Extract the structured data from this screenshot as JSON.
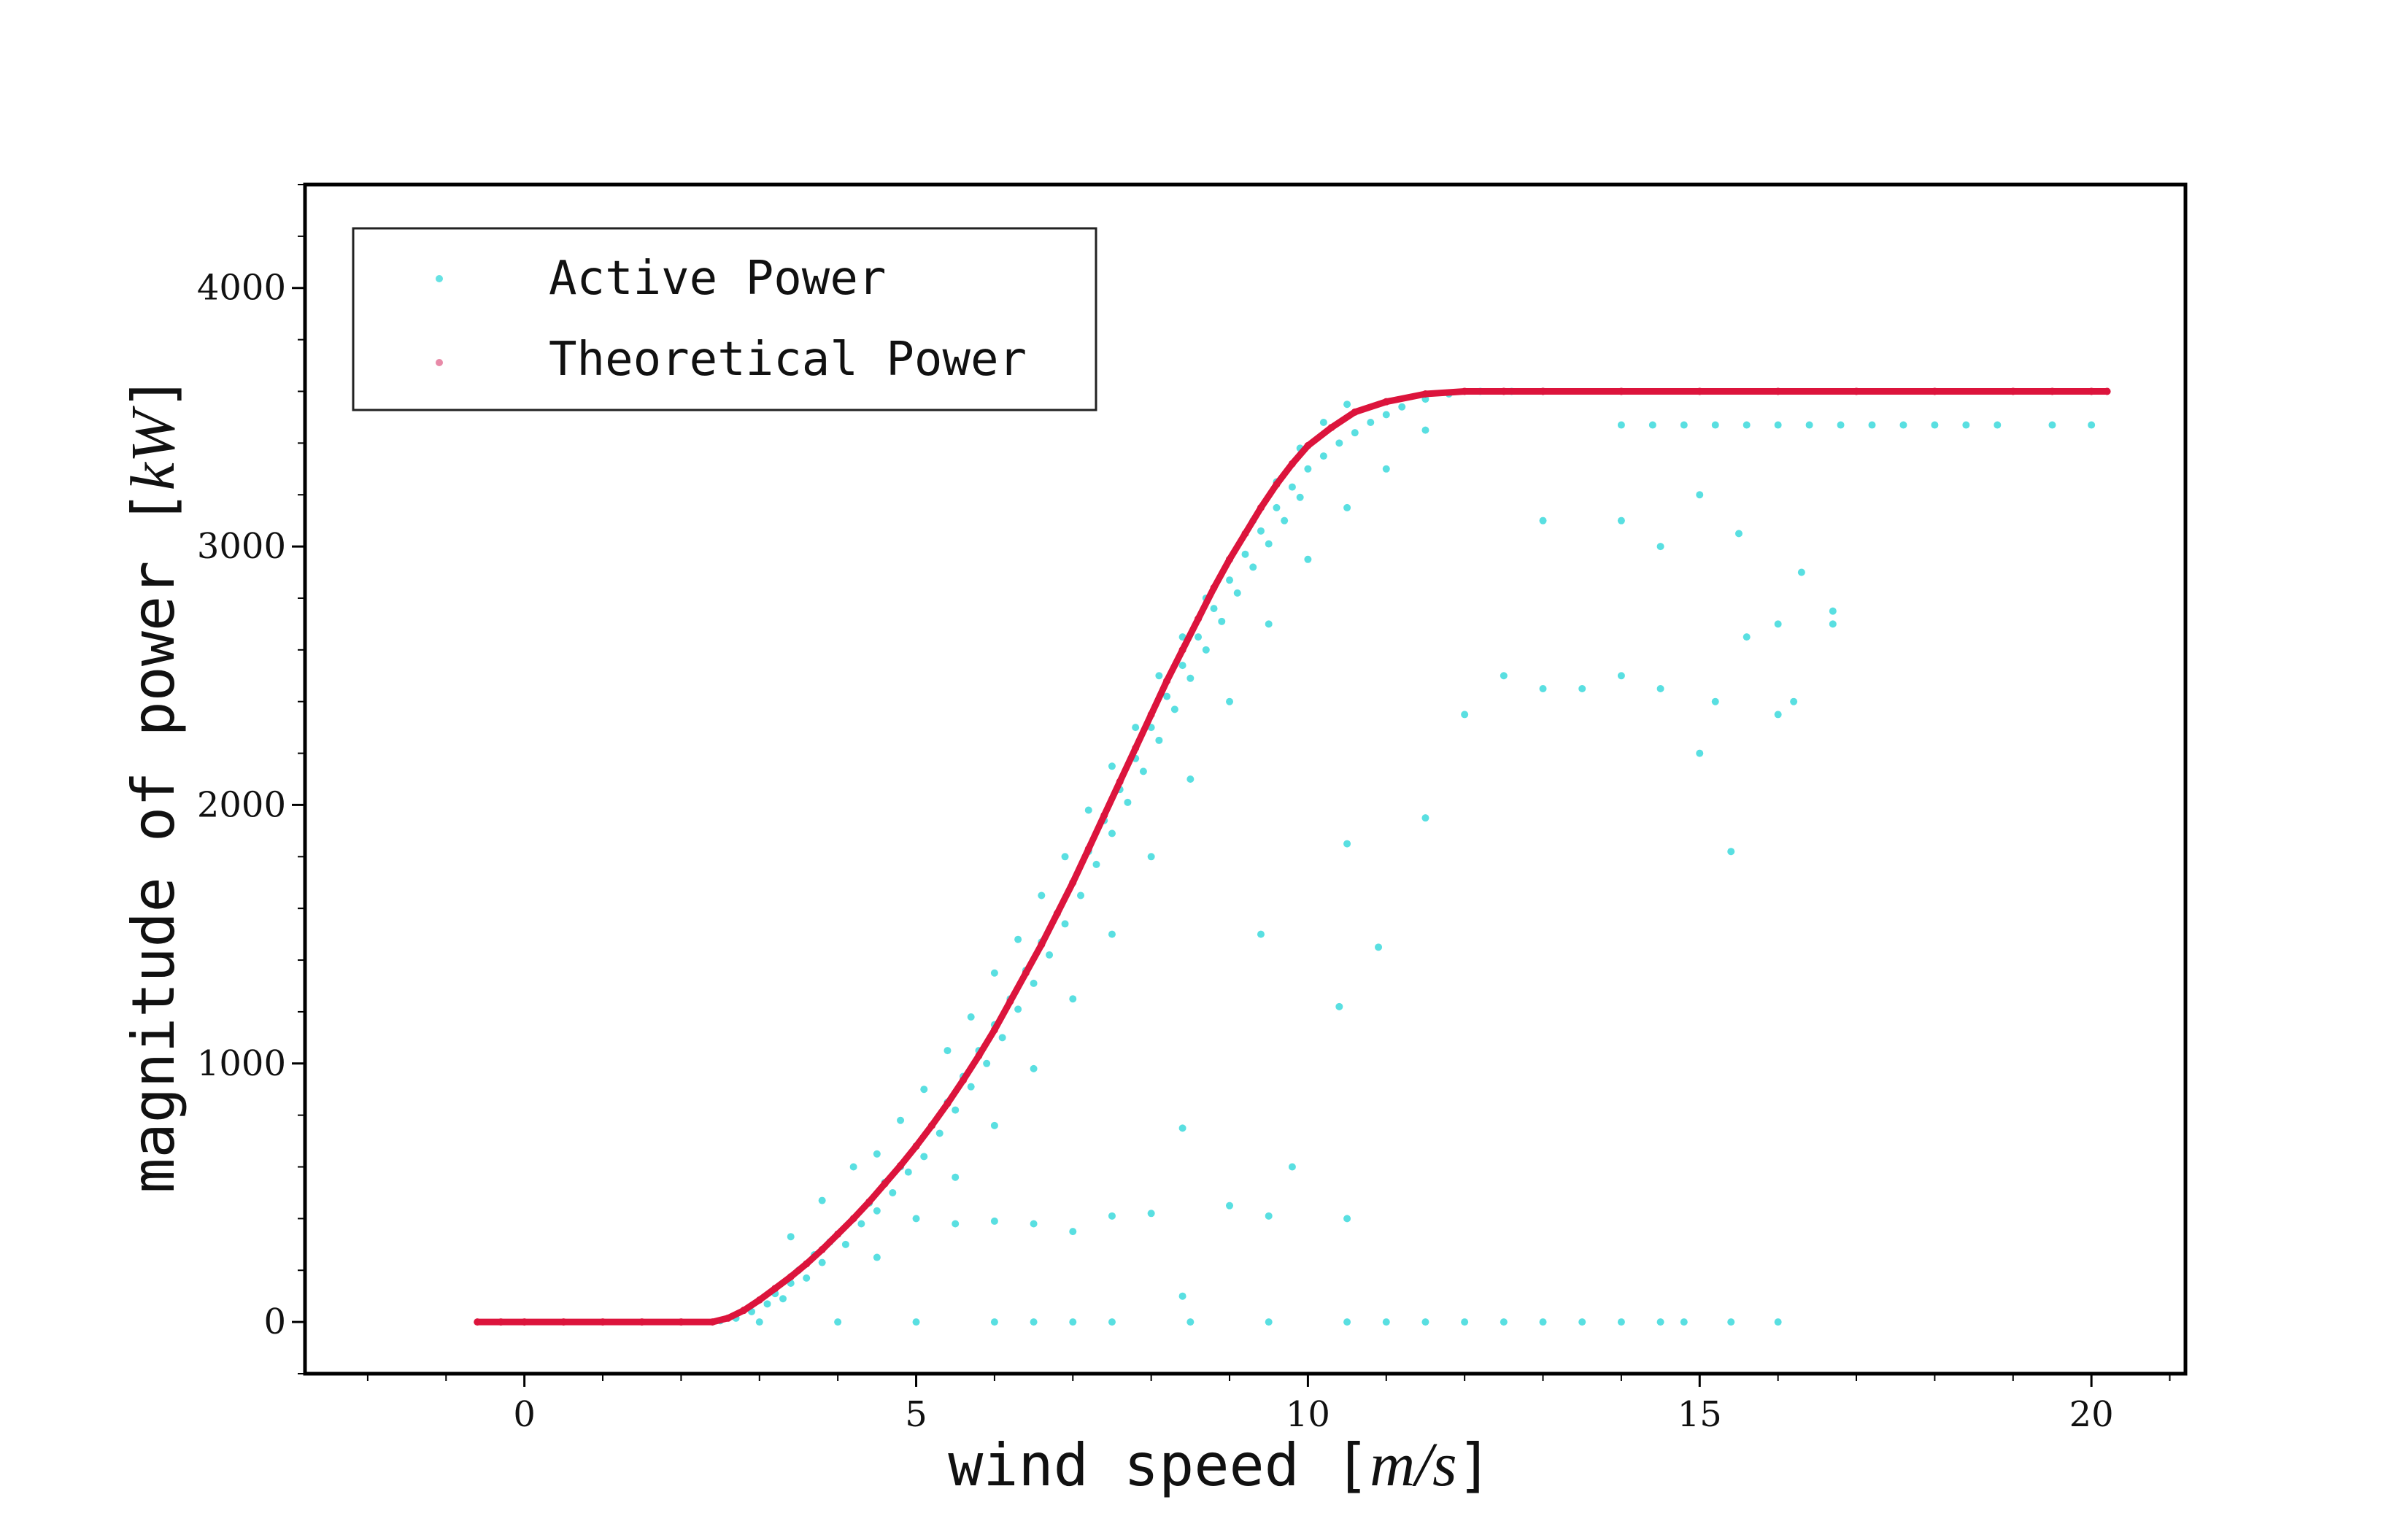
{
  "chart_data": {
    "type": "scatter",
    "title": "",
    "xlabel": "wind speed",
    "xlabel_unit": "m/s",
    "ylabel": "magnitude of power",
    "ylabel_unit": "kW",
    "xlim": [
      -2.8,
      21.2
    ],
    "ylim": [
      -200,
      4400
    ],
    "xticks": [
      0,
      5,
      10,
      15,
      20
    ],
    "yticks": [
      0,
      1000,
      2000,
      3000,
      4000
    ],
    "grid": false,
    "legend": "top-left",
    "series": [
      {
        "name": "Active Power",
        "color": "#00CED1",
        "points": [
          [
            2.5,
            5
          ],
          [
            2.7,
            15
          ],
          [
            2.9,
            40
          ],
          [
            3.1,
            70
          ],
          [
            3.2,
            110
          ],
          [
            3.3,
            90
          ],
          [
            3.4,
            150
          ],
          [
            3.5,
            200
          ],
          [
            3.6,
            170
          ],
          [
            3.7,
            260
          ],
          [
            3.8,
            230
          ],
          [
            3.9,
            310
          ],
          [
            4.0,
            340
          ],
          [
            4.1,
            300
          ],
          [
            4.2,
            400
          ],
          [
            4.3,
            380
          ],
          [
            4.4,
            460
          ],
          [
            4.5,
            430
          ],
          [
            4.6,
            540
          ],
          [
            4.7,
            500
          ],
          [
            4.8,
            600
          ],
          [
            4.9,
            580
          ],
          [
            5.0,
            680
          ],
          [
            5.1,
            640
          ],
          [
            5.2,
            760
          ],
          [
            5.3,
            730
          ],
          [
            5.4,
            850
          ],
          [
            5.5,
            820
          ],
          [
            5.6,
            950
          ],
          [
            5.7,
            910
          ],
          [
            5.8,
            1050
          ],
          [
            5.9,
            1000
          ],
          [
            6.0,
            1150
          ],
          [
            6.1,
            1100
          ],
          [
            6.2,
            1250
          ],
          [
            6.3,
            1210
          ],
          [
            6.4,
            1360
          ],
          [
            6.5,
            1310
          ],
          [
            6.6,
            1470
          ],
          [
            6.7,
            1420
          ],
          [
            6.8,
            1580
          ],
          [
            6.9,
            1540
          ],
          [
            7.0,
            1700
          ],
          [
            7.1,
            1650
          ],
          [
            7.2,
            1820
          ],
          [
            7.3,
            1770
          ],
          [
            7.4,
            1940
          ],
          [
            7.5,
            1890
          ],
          [
            7.6,
            2060
          ],
          [
            7.7,
            2010
          ],
          [
            7.8,
            2180
          ],
          [
            7.9,
            2130
          ],
          [
            8.0,
            2300
          ],
          [
            8.1,
            2250
          ],
          [
            8.2,
            2420
          ],
          [
            8.3,
            2370
          ],
          [
            8.4,
            2540
          ],
          [
            8.5,
            2490
          ],
          [
            8.6,
            2650
          ],
          [
            8.7,
            2600
          ],
          [
            8.8,
            2760
          ],
          [
            8.9,
            2710
          ],
          [
            9.0,
            2870
          ],
          [
            9.1,
            2820
          ],
          [
            9.2,
            2970
          ],
          [
            9.3,
            2920
          ],
          [
            9.4,
            3060
          ],
          [
            9.5,
            3010
          ],
          [
            9.6,
            3150
          ],
          [
            9.7,
            3100
          ],
          [
            9.8,
            3230
          ],
          [
            9.9,
            3190
          ],
          [
            10.0,
            3300
          ],
          [
            10.2,
            3350
          ],
          [
            10.4,
            3400
          ],
          [
            10.6,
            3440
          ],
          [
            10.8,
            3480
          ],
          [
            11.0,
            3510
          ],
          [
            11.2,
            3540
          ],
          [
            11.5,
            3570
          ],
          [
            11.8,
            3590
          ],
          [
            12.2,
            3600
          ],
          [
            12.6,
            3600
          ],
          [
            13.0,
            3600
          ],
          [
            3.4,
            330
          ],
          [
            3.8,
            470
          ],
          [
            4.2,
            600
          ],
          [
            4.5,
            650
          ],
          [
            4.8,
            780
          ],
          [
            5.1,
            900
          ],
          [
            5.4,
            1050
          ],
          [
            5.7,
            1180
          ],
          [
            6.0,
            1350
          ],
          [
            6.3,
            1480
          ],
          [
            6.6,
            1650
          ],
          [
            6.9,
            1800
          ],
          [
            7.2,
            1980
          ],
          [
            7.5,
            2150
          ],
          [
            7.8,
            2300
          ],
          [
            8.1,
            2500
          ],
          [
            8.4,
            2650
          ],
          [
            8.7,
            2800
          ],
          [
            9.0,
            2950
          ],
          [
            9.3,
            3100
          ],
          [
            9.6,
            3250
          ],
          [
            9.9,
            3380
          ],
          [
            10.2,
            3480
          ],
          [
            10.5,
            3550
          ],
          [
            4.5,
            250
          ],
          [
            5.0,
            400
          ],
          [
            5.5,
            560
          ],
          [
            6.0,
            760
          ],
          [
            6.5,
            980
          ],
          [
            7.0,
            1250
          ],
          [
            7.5,
            1500
          ],
          [
            8.0,
            1800
          ],
          [
            8.5,
            2100
          ],
          [
            9.0,
            2400
          ],
          [
            9.5,
            2700
          ],
          [
            10.0,
            2950
          ],
          [
            10.5,
            3150
          ],
          [
            11.0,
            3300
          ],
          [
            11.5,
            3450
          ],
          [
            5.5,
            380
          ],
          [
            6.0,
            390
          ],
          [
            6.5,
            380
          ],
          [
            7.0,
            350
          ],
          [
            7.5,
            410
          ],
          [
            8.0,
            420
          ],
          [
            9.0,
            450
          ],
          [
            9.5,
            410
          ],
          [
            10.5,
            400
          ],
          [
            8.4,
            100
          ],
          [
            8.4,
            750
          ],
          [
            9.8,
            600
          ],
          [
            10.4,
            1220
          ],
          [
            10.9,
            1450
          ],
          [
            9.4,
            1500
          ],
          [
            10.5,
            1850
          ],
          [
            11.5,
            1950
          ],
          [
            12.0,
            2350
          ],
          [
            12.5,
            2500
          ],
          [
            13.0,
            2450
          ],
          [
            13.5,
            2450
          ],
          [
            14.0,
            2500
          ],
          [
            14.5,
            2450
          ],
          [
            15.0,
            2200
          ],
          [
            15.2,
            2400
          ],
          [
            15.4,
            1820
          ],
          [
            15.6,
            2650
          ],
          [
            16.0,
            2700
          ],
          [
            16.2,
            2400
          ],
          [
            16.7,
            2750
          ],
          [
            16.7,
            2700
          ],
          [
            16.3,
            2900
          ],
          [
            14.5,
            3000
          ],
          [
            14.0,
            3100
          ],
          [
            15.0,
            3200
          ],
          [
            13.0,
            3100
          ],
          [
            15.5,
            3050
          ],
          [
            16.0,
            2350
          ],
          [
            14.0,
            3470
          ],
          [
            14.4,
            3470
          ],
          [
            14.8,
            3470
          ],
          [
            15.2,
            3470
          ],
          [
            15.6,
            3470
          ],
          [
            16.0,
            3470
          ],
          [
            16.4,
            3470
          ],
          [
            16.8,
            3470
          ],
          [
            17.2,
            3470
          ],
          [
            17.6,
            3470
          ],
          [
            18.0,
            3470
          ],
          [
            18.4,
            3470
          ],
          [
            18.8,
            3470
          ],
          [
            19.5,
            3470
          ],
          [
            20.0,
            3470
          ],
          [
            3.0,
            0
          ],
          [
            4.0,
            0
          ],
          [
            5.0,
            0
          ],
          [
            6.0,
            0
          ],
          [
            6.5,
            0
          ],
          [
            7.0,
            0
          ],
          [
            7.5,
            0
          ],
          [
            8.5,
            0
          ],
          [
            9.5,
            0
          ],
          [
            10.5,
            0
          ],
          [
            11.0,
            0
          ],
          [
            11.5,
            0
          ],
          [
            12.0,
            0
          ],
          [
            12.5,
            0
          ],
          [
            13.0,
            0
          ],
          [
            13.5,
            0
          ],
          [
            14.0,
            0
          ],
          [
            14.5,
            0
          ],
          [
            14.8,
            0
          ],
          [
            15.4,
            0
          ],
          [
            16.0,
            0
          ]
        ]
      },
      {
        "name": "Theoretical Power",
        "color": "#DC143C",
        "points": [
          [
            -0.6,
            0
          ],
          [
            -0.3,
            0
          ],
          [
            0,
            0
          ],
          [
            0.5,
            0
          ],
          [
            1.0,
            0
          ],
          [
            1.5,
            0
          ],
          [
            2.0,
            0
          ],
          [
            2.4,
            0
          ],
          [
            2.6,
            15
          ],
          [
            2.8,
            45
          ],
          [
            3.0,
            85
          ],
          [
            3.2,
            130
          ],
          [
            3.4,
            175
          ],
          [
            3.6,
            225
          ],
          [
            3.8,
            280
          ],
          [
            4.0,
            340
          ],
          [
            4.2,
            400
          ],
          [
            4.4,
            465
          ],
          [
            4.6,
            535
          ],
          [
            4.8,
            605
          ],
          [
            5.0,
            680
          ],
          [
            5.2,
            760
          ],
          [
            5.4,
            845
          ],
          [
            5.6,
            935
          ],
          [
            5.8,
            1030
          ],
          [
            6.0,
            1130
          ],
          [
            6.2,
            1240
          ],
          [
            6.4,
            1350
          ],
          [
            6.6,
            1460
          ],
          [
            6.8,
            1580
          ],
          [
            7.0,
            1700
          ],
          [
            7.2,
            1830
          ],
          [
            7.4,
            1960
          ],
          [
            7.6,
            2090
          ],
          [
            7.8,
            2220
          ],
          [
            8.0,
            2350
          ],
          [
            8.2,
            2480
          ],
          [
            8.4,
            2600
          ],
          [
            8.6,
            2720
          ],
          [
            8.8,
            2840
          ],
          [
            9.0,
            2950
          ],
          [
            9.2,
            3050
          ],
          [
            9.4,
            3150
          ],
          [
            9.6,
            3240
          ],
          [
            9.8,
            3320
          ],
          [
            10.0,
            3390
          ],
          [
            10.3,
            3460
          ],
          [
            10.6,
            3520
          ],
          [
            11.0,
            3560
          ],
          [
            11.5,
            3590
          ],
          [
            12.0,
            3600
          ],
          [
            12.5,
            3600
          ],
          [
            13.0,
            3600
          ],
          [
            14.0,
            3600
          ],
          [
            15.0,
            3600
          ],
          [
            16.0,
            3600
          ],
          [
            17.0,
            3600
          ],
          [
            18.0,
            3600
          ],
          [
            19.0,
            3600
          ],
          [
            19.5,
            3600
          ],
          [
            20.0,
            3600
          ],
          [
            20.2,
            3600
          ]
        ]
      }
    ]
  }
}
